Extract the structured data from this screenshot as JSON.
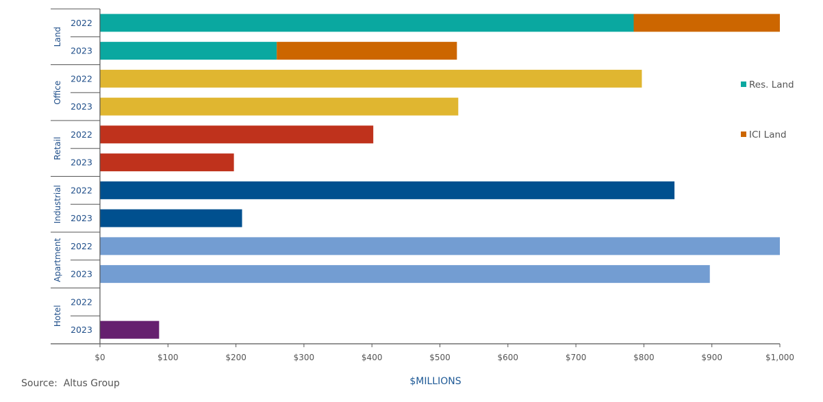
{
  "chart_data": {
    "type": "bar",
    "orientation": "horizontal",
    "stacked": true,
    "title": "",
    "xlabel": "$MILLIONS",
    "ylabel": "",
    "xlim": [
      0,
      1000
    ],
    "x_ticks": [
      0,
      100,
      200,
      300,
      400,
      500,
      600,
      700,
      800,
      900,
      1000
    ],
    "x_tick_labels": [
      "$0",
      "$100",
      "$200",
      "$300",
      "$400",
      "$500",
      "$600",
      "$700",
      "$800",
      "$900",
      "$1,000"
    ],
    "grid": false,
    "legend_position": "right",
    "legend": [
      {
        "name": "Res. Land",
        "color": "#0aa8a0"
      },
      {
        "name": "ICI Land",
        "color": "#cc6600"
      }
    ],
    "groups": [
      {
        "category": "Land",
        "rows": [
          {
            "year": "2022",
            "segments": [
              {
                "series": "Res. Land",
                "value": 785,
                "color": "#0aa8a0"
              },
              {
                "series": "ICI Land",
                "value": 215,
                "color": "#cc6600"
              }
            ]
          },
          {
            "year": "2023",
            "segments": [
              {
                "series": "Res. Land",
                "value": 260,
                "color": "#0aa8a0"
              },
              {
                "series": "ICI Land",
                "value": 265,
                "color": "#cc6600"
              }
            ]
          }
        ]
      },
      {
        "category": "Office",
        "rows": [
          {
            "year": "2022",
            "segments": [
              {
                "series": "Office",
                "value": 797,
                "color": "#e0b630"
              }
            ]
          },
          {
            "year": "2023",
            "segments": [
              {
                "series": "Office",
                "value": 527,
                "color": "#e0b630"
              }
            ]
          }
        ]
      },
      {
        "category": "Retail",
        "rows": [
          {
            "year": "2022",
            "segments": [
              {
                "series": "Retail",
                "value": 402,
                "color": "#bf321c"
              }
            ]
          },
          {
            "year": "2023",
            "segments": [
              {
                "series": "Retail",
                "value": 197,
                "color": "#bf321c"
              }
            ]
          }
        ]
      },
      {
        "category": "Industrial",
        "rows": [
          {
            "year": "2022",
            "segments": [
              {
                "series": "Industrial",
                "value": 845,
                "color": "#00508f"
              }
            ]
          },
          {
            "year": "2023",
            "segments": [
              {
                "series": "Industrial",
                "value": 209,
                "color": "#00508f"
              }
            ]
          }
        ]
      },
      {
        "category": "Apartment",
        "rows": [
          {
            "year": "2022",
            "segments": [
              {
                "series": "Apartment",
                "value": 1000,
                "color": "#739dd2"
              }
            ]
          },
          {
            "year": "2023",
            "segments": [
              {
                "series": "Apartment",
                "value": 897,
                "color": "#739dd2"
              }
            ]
          }
        ]
      },
      {
        "category": "Hotel",
        "rows": [
          {
            "year": "2022",
            "segments": []
          },
          {
            "year": "2023",
            "segments": [
              {
                "series": "Hotel",
                "value": 87,
                "color": "#66206f"
              }
            ]
          }
        ]
      }
    ]
  },
  "source": "Source:  Altus Group",
  "colors": {
    "axis": "#555555",
    "category_text": "#1f4e89"
  }
}
